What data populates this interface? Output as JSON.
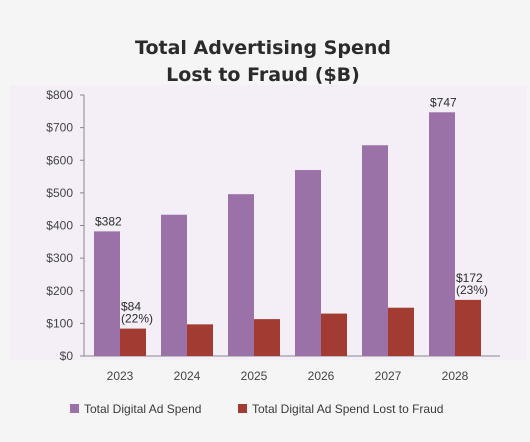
{
  "chart_data": {
    "type": "bar",
    "title_lines": [
      "Total Advertising Spend",
      "Lost to Fraud ($B)"
    ],
    "categories": [
      "2023",
      "2024",
      "2025",
      "2026",
      "2027",
      "2028"
    ],
    "series": [
      {
        "name": "Total Digital Ad Spend",
        "color": "#9b72a8",
        "values": [
          382,
          433,
          496,
          570,
          646,
          747
        ]
      },
      {
        "name": "Total Digital Ad Spend Lost to Fraud",
        "color": "#a23b32",
        "values": [
          84,
          97,
          113,
          130,
          148,
          172
        ]
      }
    ],
    "y_ticks": [
      "$800",
      "$700",
      "$600",
      "$500",
      "$400",
      "$300",
      "$200",
      "$100",
      "$0"
    ],
    "ylim": [
      0,
      800
    ],
    "grid": false,
    "legend_position": "bottom",
    "data_labels": [
      {
        "series": 0,
        "index": 0,
        "lines": [
          "$382"
        ]
      },
      {
        "series": 0,
        "index": 5,
        "lines": [
          "$747"
        ]
      },
      {
        "series": 1,
        "index": 0,
        "lines": [
          "$84",
          "(22%)"
        ]
      },
      {
        "series": 1,
        "index": 5,
        "lines": [
          "$172",
          "(23%)"
        ]
      }
    ]
  }
}
